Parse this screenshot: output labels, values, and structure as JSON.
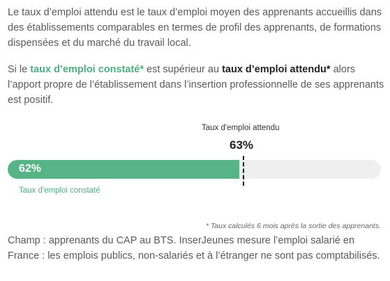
{
  "intro": {
    "text": "Le taux d’emploi attendu est le taux d’emploi moyen des apprenants accueillis dans des établissements comparables en termes de profil des apprenants, de formations dispensées et du marché du travail local."
  },
  "comparison": {
    "prefix": "Si le ",
    "actual_term": "taux d’emploi constaté*",
    "middle": " est supérieur au ",
    "expected_term": "taux d’emploi attendu*",
    "suffix": " alors l’apport propre de l’établissement dans l’insertion professionnelle de ses apprenants est positif."
  },
  "gauge": {
    "expected_label": "Taux d'emploi attendu",
    "expected_value": "63%",
    "expected_fraction": 0.63,
    "actual_value": "62%",
    "actual_fraction": 0.62,
    "actual_label": "Taux d'emploi constaté",
    "colors": {
      "fill": "#56b487",
      "track": "#efefef",
      "marker": "#111111"
    }
  },
  "footnote": "* Taux calculés 6 mois après la sortie des apprenants.",
  "scope": {
    "text": "Champ : apprenants du CAP au BTS. InserJeunes mesure l’emploi salarié en France : les emplois publics, non-salariés et à l’étranger ne sont pas comptabilisés."
  }
}
